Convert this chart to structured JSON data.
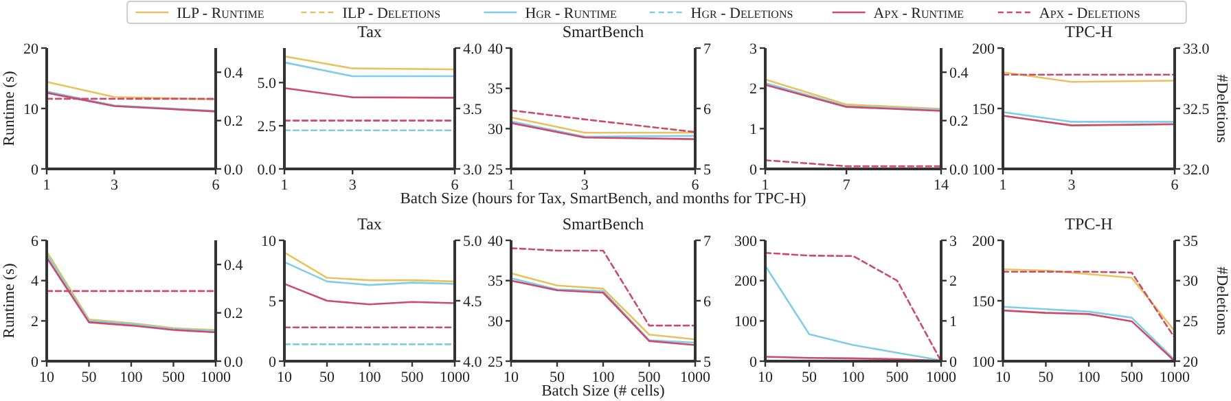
{
  "chart_data": [
    {
      "type": "line",
      "x": [
        1,
        3,
        6
      ],
      "xlim": [
        1,
        6
      ],
      "xticks": [
        1,
        3,
        6
      ],
      "ylim": [
        0,
        20
      ],
      "yticks": [
        0,
        10,
        20
      ],
      "y2lim": [
        0,
        0.5
      ],
      "y2ticks": [
        {
          "value": 0,
          "label": "0.0"
        },
        {
          "value": 0.2,
          "label": "0.2"
        },
        {
          "value": 0.4,
          "label": "0.4"
        }
      ],
      "ylabel": "Runtime (s)",
      "legend": "top",
      "grid": false,
      "series": [
        {
          "name": "ILP - Runtime",
          "color": "#e6c35c",
          "values": [
            14.4,
            11.9,
            11.5
          ]
        },
        {
          "name": "ILP - Deletions",
          "color": "#e6c35c",
          "line_style": "dashed",
          "axis": "y2",
          "values": [
            null,
            null,
            null
          ]
        },
        {
          "name": "Hgr - Runtime",
          "color": "#80cde8",
          "values": [
            12.8,
            10.5,
            9.6
          ]
        },
        {
          "name": "Hgr - Deletions",
          "color": "#80cde8",
          "line_style": "dashed",
          "axis": "y2",
          "values": [
            null,
            null,
            null
          ]
        },
        {
          "name": "Apx - Runtime",
          "color": "#cc4a6a",
          "values": [
            12.6,
            10.4,
            9.5
          ]
        },
        {
          "name": "Apx - Deletions",
          "color": "#cc4a6a",
          "line_style": "dashed",
          "axis": "y2",
          "values": [
            0.29,
            0.29,
            0.29
          ]
        }
      ]
    },
    {
      "type": "line",
      "title": "Tax",
      "x": [
        1,
        3,
        6
      ],
      "xlim": [
        1,
        6
      ],
      "xticks": [
        1,
        3,
        6
      ],
      "ylim": [
        0,
        7
      ],
      "yticks": [
        {
          "value": 0,
          "label": "0.0"
        },
        {
          "value": 2.5,
          "label": "2.5"
        },
        {
          "value": 5,
          "label": "5.0"
        }
      ],
      "y2lim": [
        3,
        4
      ],
      "y2ticks": [
        {
          "value": 3,
          "label": "3.0"
        },
        {
          "value": 3.5,
          "label": "3.5"
        },
        {
          "value": 4,
          "label": "4.0"
        }
      ],
      "series": [
        {
          "color": "#e6c35c",
          "values": [
            6.52,
            5.82,
            5.77
          ]
        },
        {
          "color": "#80cde8",
          "values": [
            6.17,
            5.37,
            5.37
          ]
        },
        {
          "color": "#80cde8",
          "line_style": "dashed",
          "axis": "y2",
          "values": [
            3.32,
            3.32,
            3.32
          ]
        },
        {
          "color": "#cc4a6a",
          "values": [
            4.68,
            4.15,
            4.12
          ]
        },
        {
          "color": "#cc4a6a",
          "line_style": "dashed",
          "axis": "y2",
          "values": [
            3.4,
            3.4,
            3.4
          ]
        }
      ]
    },
    {
      "type": "line",
      "title": "SmartBench",
      "xlabel": "Batch Size (hours for Tax, SmartBench, and months for TPC-H)",
      "x": [
        1,
        3,
        6
      ],
      "xlim": [
        1,
        6
      ],
      "xticks": [
        1,
        3,
        6
      ],
      "ylim": [
        25,
        40
      ],
      "yticks": [
        25,
        30,
        35,
        40
      ],
      "y2lim": [
        5,
        7
      ],
      "y2ticks": [
        5,
        6,
        7
      ],
      "series": [
        {
          "color": "#e6c35c",
          "values": [
            31.4,
            29.5,
            29.5
          ]
        },
        {
          "color": "#80cde8",
          "values": [
            30.9,
            29.0,
            29.1
          ]
        },
        {
          "color": "#cc4a6a",
          "values": [
            30.7,
            28.9,
            28.7
          ]
        },
        {
          "color": "#cc4a6a",
          "line_style": "dashed",
          "axis": "y2",
          "values": [
            5.97,
            5.82,
            5.61
          ]
        }
      ]
    },
    {
      "type": "line",
      "x": [
        1,
        7,
        14
      ],
      "xlim": [
        1,
        14
      ],
      "xticks": [
        1,
        7,
        14
      ],
      "ylim": [
        0,
        3
      ],
      "yticks": [
        0,
        1,
        2,
        3
      ],
      "y2lim": [
        0,
        0.5
      ],
      "y2ticks": [
        {
          "value": 0,
          "label": "0.0"
        },
        {
          "value": 0.2,
          "label": "0.2"
        },
        {
          "value": 0.4,
          "label": "0.4"
        }
      ],
      "series": [
        {
          "color": "#e6c35c",
          "values": [
            2.22,
            1.6,
            1.49
          ]
        },
        {
          "color": "#80cde8",
          "values": [
            2.13,
            1.56,
            1.47
          ]
        },
        {
          "color": "#cc4a6a",
          "values": [
            2.09,
            1.54,
            1.44
          ]
        },
        {
          "color": "#cc4a6a",
          "line_style": "dashed",
          "axis": "y2",
          "values": [
            0.036,
            0.011,
            0.011
          ]
        }
      ]
    },
    {
      "type": "line",
      "title": "TPC-H",
      "x": [
        1,
        3,
        6
      ],
      "xlim": [
        1,
        6
      ],
      "xticks": [
        1,
        3,
        6
      ],
      "ylim": [
        100,
        200
      ],
      "yticks": [
        100,
        150,
        200
      ],
      "y2lim": [
        32,
        33
      ],
      "y2ticks": [
        {
          "value": 32,
          "label": "32.0"
        },
        {
          "value": 32.5,
          "label": "32.5"
        },
        {
          "value": 33,
          "label": "33.0"
        }
      ],
      "y2label": "#Deletions",
      "series": [
        {
          "color": "#e6c35c",
          "values": [
            180,
            172,
            173
          ]
        },
        {
          "color": "#80cde8",
          "values": [
            147,
            139,
            139
          ]
        },
        {
          "color": "#cc4a6a",
          "values": [
            144,
            136,
            137
          ]
        },
        {
          "color": "#cc4a6a",
          "line_style": "dashed",
          "axis": "y2",
          "values": [
            32.78,
            32.78,
            32.78
          ]
        }
      ]
    },
    {
      "type": "line",
      "categories": [
        "10",
        "50",
        "100",
        "500",
        "1000"
      ],
      "ylim": [
        0,
        6
      ],
      "yticks": [
        0,
        2,
        4,
        6
      ],
      "y2lim": [
        0,
        0.5
      ],
      "y2ticks": [
        {
          "value": 0,
          "label": "0.0"
        },
        {
          "value": 0.2,
          "label": "0.2"
        },
        {
          "value": 0.4,
          "label": "0.4"
        }
      ],
      "ylabel": "Runtime (s)",
      "series": [
        {
          "color": "#e6c35c",
          "values": [
            5.45,
            2.07,
            1.89,
            1.64,
            1.55
          ]
        },
        {
          "color": "#80cde8",
          "values": [
            5.3,
            2.0,
            1.85,
            1.6,
            1.5
          ]
        },
        {
          "color": "#cc4a6a",
          "values": [
            5.14,
            1.93,
            1.77,
            1.55,
            1.43
          ]
        },
        {
          "color": "#cc4a6a",
          "line_style": "dashed",
          "axis": "y2",
          "values": [
            0.29,
            0.29,
            0.29,
            0.29,
            0.29
          ]
        }
      ]
    },
    {
      "type": "line",
      "title": "Tax",
      "categories": [
        "10",
        "50",
        "100",
        "500",
        "1000"
      ],
      "ylim": [
        0,
        10
      ],
      "yticks": [
        0,
        5,
        10
      ],
      "y2lim": [
        4,
        5
      ],
      "y2ticks": [
        {
          "value": 4,
          "label": "4.0"
        },
        {
          "value": 4.5,
          "label": "4.5"
        },
        {
          "value": 5,
          "label": "5.0"
        }
      ],
      "series": [
        {
          "color": "#e6c35c",
          "values": [
            9.0,
            6.9,
            6.7,
            6.7,
            6.6
          ]
        },
        {
          "color": "#80cde8",
          "values": [
            8.2,
            6.6,
            6.3,
            6.5,
            6.4
          ]
        },
        {
          "color": "#80cde8",
          "line_style": "dashed",
          "axis": "y2",
          "values": [
            4.14,
            4.14,
            4.14,
            4.14,
            4.14
          ]
        },
        {
          "color": "#cc4a6a",
          "values": [
            6.4,
            5.0,
            4.7,
            4.9,
            4.8
          ]
        },
        {
          "color": "#cc4a6a",
          "line_style": "dashed",
          "axis": "y2",
          "values": [
            4.28,
            4.28,
            4.28,
            4.28,
            4.28
          ]
        }
      ]
    },
    {
      "type": "line",
      "title": "SmartBench",
      "xlabel": "Batch Size (# cells)",
      "categories": [
        "10",
        "50",
        "100",
        "500",
        "1000"
      ],
      "ylim": [
        25,
        40
      ],
      "yticks": [
        25,
        30,
        35,
        40
      ],
      "y2lim": [
        5,
        7
      ],
      "y2ticks": [
        5,
        6,
        7
      ],
      "series": [
        {
          "color": "#e6c35c",
          "values": [
            35.9,
            34.4,
            34.0,
            28.3,
            27.7
          ]
        },
        {
          "color": "#80cde8",
          "values": [
            35.3,
            33.9,
            33.7,
            27.6,
            27.3
          ]
        },
        {
          "color": "#cc4a6a",
          "values": [
            35.0,
            33.8,
            33.5,
            27.5,
            27.0
          ]
        },
        {
          "color": "#cc4a6a",
          "line_style": "dashed",
          "axis": "y2",
          "values": [
            6.87,
            6.83,
            6.83,
            5.59,
            5.59
          ]
        }
      ]
    },
    {
      "type": "line",
      "categories": [
        "10",
        "50",
        "100",
        "500",
        "1000"
      ],
      "ylim": [
        0,
        300
      ],
      "yticks": [
        0,
        100,
        200,
        300
      ],
      "y2lim": [
        0,
        3
      ],
      "y2ticks": [
        0,
        1,
        2,
        3
      ],
      "series": [
        {
          "color": "#80cde8",
          "values": [
            237,
            67,
            40,
            21,
            2
          ]
        },
        {
          "color": "#cc4a6a",
          "values": [
            11,
            8,
            7,
            5,
            1
          ]
        },
        {
          "color": "#cc4a6a",
          "line_style": "dashed",
          "axis": "y2",
          "values": [
            2.69,
            2.62,
            2.61,
            2.0,
            0
          ]
        }
      ]
    },
    {
      "type": "line",
      "title": "TPC-H",
      "categories": [
        "10",
        "50",
        "100",
        "500",
        "1000"
      ],
      "ylim": [
        100,
        200
      ],
      "yticks": [
        100,
        150,
        200
      ],
      "y2lim": [
        20,
        35
      ],
      "y2ticks": [
        20,
        25,
        30,
        35
      ],
      "y2label": "#Deletions",
      "series": [
        {
          "color": "#e6c35c",
          "values": [
            176,
            175,
            172,
            169,
            125
          ]
        },
        {
          "color": "#80cde8",
          "values": [
            145,
            143,
            141,
            136,
            101
          ]
        },
        {
          "color": "#cc4a6a",
          "values": [
            142,
            140,
            139,
            133,
            100
          ]
        },
        {
          "color": "#cc4a6a",
          "line_style": "dashed",
          "axis": "y2",
          "values": [
            31.1,
            31.1,
            31.1,
            31.0,
            22.9
          ]
        }
      ]
    }
  ]
}
